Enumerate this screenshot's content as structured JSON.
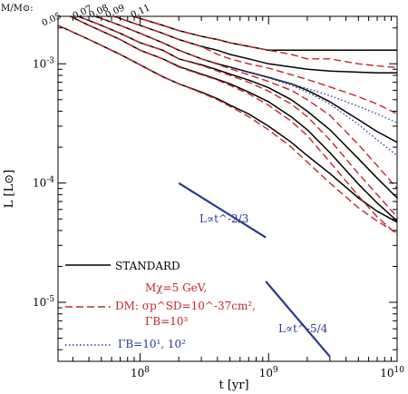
{
  "chart_data": {
    "type": "line",
    "xscale": "log",
    "yscale": "log",
    "xlim": [
      23000000,
      10000000000
    ],
    "ylim": [
      3.2e-06,
      0.0025
    ],
    "xlabel": "t  [yr]",
    "ylabel": "L  [L⊙]",
    "mass_header": "M/M⊙:",
    "mass_labels": [
      "0.05",
      "0.07",
      "0.08",
      "0.09",
      "0.10",
      "0.11"
    ],
    "x_ticks": [
      {
        "value": 100000000,
        "label": "10^8"
      },
      {
        "value": 1000000000,
        "label": "10^9"
      },
      {
        "value": 10000000000,
        "label": "10^10"
      }
    ],
    "y_ticks": [
      {
        "value": 1e-05,
        "label": "10^-5"
      },
      {
        "value": 0.0001,
        "label": "10^-4"
      },
      {
        "value": 0.001,
        "label": "10^-3"
      }
    ],
    "legend": {
      "standard": "STANDARD",
      "dm_lines": [
        "Mχ=5 GeV,",
        "DM: σp^SD=10^-37cm²,",
        "ΓB=10³"
      ],
      "dotted": "ΓB=10¹, 10²"
    },
    "annotations": [
      {
        "text": "L∝t^-2/3",
        "line": {
          "x": [
            200000000,
            950000000
          ],
          "y": [
            0.0001,
            3.5e-05
          ]
        }
      },
      {
        "text": "L∝t^-5/4",
        "line": {
          "x": [
            950000000,
            3000000000
          ],
          "y": [
            1.5e-05,
            3.5e-06
          ]
        }
      }
    ],
    "series": [
      {
        "style": "standard",
        "x": [
          23000000,
          40000000,
          70000000,
          100000000,
          150000000,
          200000000,
          300000000,
          400000000,
          500000000,
          700000000,
          1000000000,
          1500000000,
          2000000000,
          3000000000,
          5000000000,
          7000000000,
          10000000000
        ],
        "y": [
          0.0021,
          0.0016,
          0.0012,
          0.00098,
          0.00078,
          0.00068,
          0.00058,
          0.00051,
          0.00045,
          0.00038,
          0.0003,
          0.00022,
          0.00017,
          0.00012,
          7.5e-05,
          5.8e-05,
          4.7e-05
        ]
      },
      {
        "style": "standard",
        "x": [
          23000000,
          40000000,
          70000000,
          100000000,
          150000000,
          200000000,
          300000000,
          400000000,
          500000000,
          700000000,
          1000000000,
          1500000000,
          2000000000,
          3000000000,
          5000000000,
          7000000000,
          10000000000
        ],
        "y": [
          0.0028,
          0.0021,
          0.0016,
          0.0013,
          0.0011,
          0.00095,
          0.00082,
          0.00074,
          0.00068,
          0.00058,
          0.00048,
          0.00036,
          0.00028,
          0.00018,
          9.8e-05,
          6.8e-05,
          4.8e-05
        ]
      },
      {
        "style": "standard",
        "x": [
          30000000,
          50000000,
          70000000,
          100000000,
          150000000,
          200000000,
          300000000,
          400000000,
          500000000,
          700000000,
          1000000000,
          1500000000,
          2000000000,
          3000000000,
          5000000000,
          7000000000,
          10000000000
        ],
        "y": [
          0.0026,
          0.0021,
          0.0018,
          0.0015,
          0.0013,
          0.0011,
          0.00098,
          0.00089,
          0.00082,
          0.00073,
          0.00063,
          0.0005,
          0.0004,
          0.00028,
          0.00016,
          0.00011,
          7.5e-05
        ]
      },
      {
        "style": "standard",
        "x": [
          40000000,
          50000000,
          70000000,
          100000000,
          150000000,
          200000000,
          300000000,
          400000000,
          500000000,
          700000000,
          1000000000,
          1500000000,
          2000000000,
          3000000000,
          5000000000,
          7000000000,
          10000000000
        ],
        "y": [
          0.0026,
          0.0024,
          0.0021,
          0.0018,
          0.0015,
          0.0013,
          0.0011,
          0.001,
          0.00094,
          0.00085,
          0.00077,
          0.00068,
          0.0006,
          0.00048,
          0.00034,
          0.00027,
          0.00022
        ]
      },
      {
        "style": "standard",
        "x": [
          50000000,
          70000000,
          100000000,
          150000000,
          200000000,
          300000000,
          400000000,
          500000000,
          700000000,
          1000000000,
          1500000000,
          2000000000,
          3000000000,
          5000000000,
          7000000000,
          10000000000
        ],
        "y": [
          0.0027,
          0.0024,
          0.0021,
          0.0018,
          0.0016,
          0.0014,
          0.0013,
          0.0012,
          0.0011,
          0.001,
          0.00094,
          0.0009,
          0.00087,
          0.00085,
          0.00084,
          0.00084
        ]
      },
      {
        "style": "standard",
        "x": [
          60000000,
          70000000,
          100000000,
          150000000,
          200000000,
          300000000,
          400000000,
          500000000,
          700000000,
          1000000000,
          1500000000,
          2000000000,
          3000000000,
          5000000000,
          7000000000,
          10000000000
        ],
        "y": [
          0.0028,
          0.0027,
          0.0024,
          0.0021,
          0.0019,
          0.0017,
          0.0016,
          0.0015,
          0.0014,
          0.0013,
          0.0013,
          0.0013,
          0.0013,
          0.0013,
          0.0013,
          0.0013
        ]
      },
      {
        "style": "dm",
        "x": [
          23000000,
          40000000,
          70000000,
          100000000,
          150000000,
          200000000,
          300000000,
          400000000,
          500000000,
          700000000,
          1000000000,
          1500000000,
          2000000000,
          3000000000,
          5000000000,
          7000000000,
          10000000000
        ],
        "y": [
          0.0021,
          0.0016,
          0.0012,
          0.00098,
          0.00078,
          0.00068,
          0.00057,
          0.0005,
          0.00044,
          0.00036,
          0.00028,
          0.0002,
          0.00015,
          0.0001,
          6.2e-05,
          4.8e-05,
          3.8e-05
        ]
      },
      {
        "style": "dm",
        "x": [
          23000000,
          40000000,
          70000000,
          100000000,
          150000000,
          200000000,
          300000000,
          400000000,
          500000000,
          700000000,
          1000000000,
          1500000000,
          2000000000,
          3000000000,
          5000000000,
          7000000000,
          10000000000
        ],
        "y": [
          0.0028,
          0.0021,
          0.0016,
          0.0013,
          0.0011,
          0.00094,
          0.00081,
          0.00073,
          0.00066,
          0.00056,
          0.00045,
          0.00033,
          0.00025,
          0.00015,
          7.8e-05,
          5.2e-05,
          3.7e-05
        ]
      },
      {
        "style": "dm",
        "x": [
          30000000,
          50000000,
          70000000,
          100000000,
          150000000,
          200000000,
          300000000,
          400000000,
          500000000,
          700000000,
          1000000000,
          1500000000,
          2000000000,
          3000000000,
          5000000000,
          7000000000,
          10000000000
        ],
        "y": [
          0.0026,
          0.0021,
          0.0018,
          0.0015,
          0.0013,
          0.0011,
          0.00097,
          0.00087,
          0.0008,
          0.0007,
          0.00059,
          0.00046,
          0.00036,
          0.00023,
          0.00012,
          8e-05,
          5.2e-05
        ]
      },
      {
        "style": "dm",
        "x": [
          40000000,
          50000000,
          70000000,
          100000000,
          150000000,
          200000000,
          300000000,
          400000000,
          500000000,
          700000000,
          1000000000,
          1500000000,
          2000000000,
          3000000000,
          5000000000,
          7000000000,
          10000000000
        ],
        "y": [
          0.0026,
          0.0024,
          0.0021,
          0.0018,
          0.0015,
          0.0013,
          0.0011,
          0.00099,
          0.00091,
          0.00081,
          0.00071,
          0.0006,
          0.0005,
          0.00037,
          0.00021,
          0.00014,
          9e-05
        ]
      },
      {
        "style": "dm",
        "x": [
          50000000,
          70000000,
          100000000,
          150000000,
          200000000,
          300000000,
          400000000,
          500000000,
          700000000,
          1000000000,
          1500000000,
          2000000000,
          3000000000,
          5000000000,
          7000000000,
          10000000000
        ],
        "y": [
          0.0027,
          0.0024,
          0.0021,
          0.0018,
          0.0016,
          0.0014,
          0.0012,
          0.0011,
          0.001,
          0.00092,
          0.00081,
          0.00074,
          0.00064,
          0.00053,
          0.00046,
          0.00038
        ]
      },
      {
        "style": "dm",
        "x": [
          60000000,
          70000000,
          100000000,
          150000000,
          200000000,
          300000000,
          400000000,
          500000000,
          700000000,
          1000000000,
          1500000000,
          2000000000,
          3000000000,
          5000000000,
          7000000000,
          10000000000
        ],
        "y": [
          0.0028,
          0.0027,
          0.0024,
          0.0021,
          0.0019,
          0.0017,
          0.0016,
          0.0015,
          0.0014,
          0.0013,
          0.0012,
          0.0011,
          0.0011,
          0.001,
          0.00096,
          0.00093
        ]
      },
      {
        "style": "dotted",
        "x": [
          500000000,
          700000000,
          1000000000,
          1500000000,
          2000000000,
          3000000000,
          5000000000,
          7000000000,
          10000000000
        ],
        "y": [
          0.00094,
          0.00085,
          0.00076,
          0.00066,
          0.00058,
          0.00046,
          0.00031,
          0.00023,
          0.00017
        ]
      },
      {
        "style": "dotted",
        "x": [
          500000000,
          700000000,
          1000000000,
          1500000000,
          2000000000,
          3000000000,
          5000000000,
          7000000000,
          10000000000
        ],
        "y": [
          0.00094,
          0.00085,
          0.00077,
          0.00068,
          0.00062,
          0.00054,
          0.00044,
          0.00038,
          0.00032
        ]
      }
    ]
  }
}
